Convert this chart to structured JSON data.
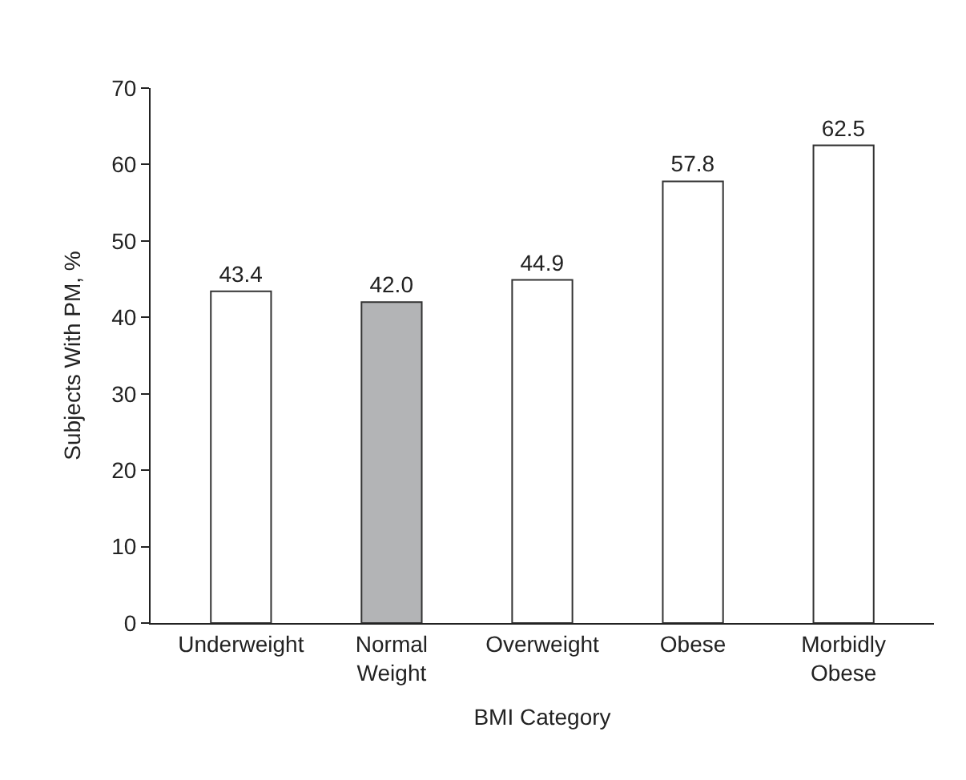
{
  "chart_data": {
    "type": "bar",
    "xlabel": "BMI Category",
    "ylabel": "Subjects With PM, %",
    "categories": [
      "Underweight",
      "Normal Weight",
      "Overweight",
      "Obese",
      "Morbidly Obese"
    ],
    "values": [
      43.4,
      42.0,
      44.9,
      57.8,
      62.5
    ],
    "colors": [
      "#ffffff",
      "#b3b4b6",
      "#ffffff",
      "#ffffff",
      "#ffffff"
    ],
    "value_labels": [
      "43.4",
      "42.0",
      "44.9",
      "57.8",
      "62.5"
    ],
    "ylim": [
      0,
      70
    ],
    "yticks": [
      0,
      10,
      20,
      30,
      40,
      50,
      60,
      70
    ]
  }
}
